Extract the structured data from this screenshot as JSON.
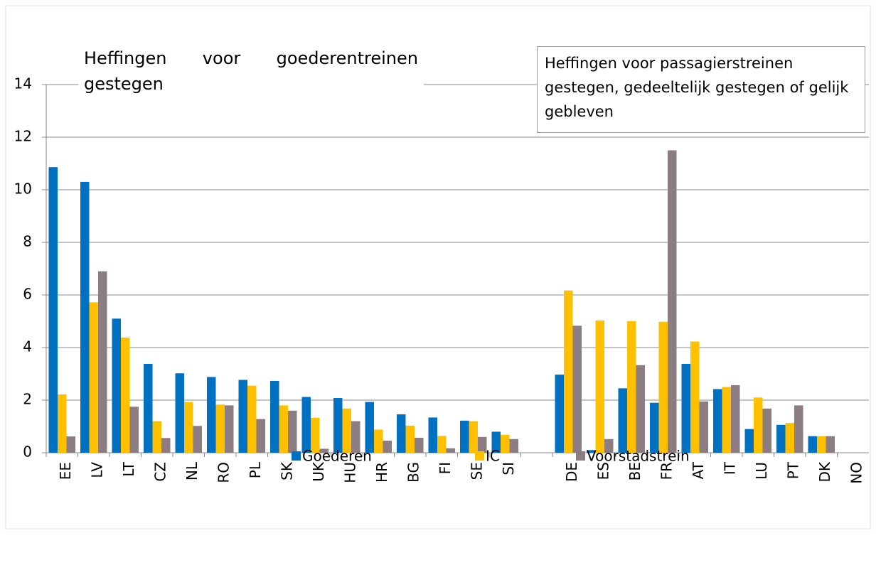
{
  "chart_data": {
    "type": "bar",
    "annotations": [
      {
        "text": "Heffingen voor goederentreinen gestegen"
      },
      {
        "text": "Heffingen voor passagierstreinen gestegen, gedeeltelijk gestegen of gelijk gebleven"
      }
    ],
    "categories": [
      "EE",
      "LV",
      "LT",
      "CZ",
      "NL",
      "RO",
      "PL",
      "SK",
      "UK",
      "HU",
      "HR",
      "BG",
      "FI",
      "SE",
      "SI",
      null,
      "DE",
      "ES",
      "BE",
      "FR",
      "AT",
      "IT",
      "LU",
      "PT",
      "DK",
      "NO"
    ],
    "series": [
      {
        "name": "Goederen",
        "color": "#0070c0",
        "values": [
          10.86,
          10.3,
          5.1,
          3.38,
          3.02,
          2.88,
          2.77,
          2.73,
          2.12,
          2.08,
          1.93,
          1.46,
          1.34,
          1.22,
          0.8,
          null,
          2.97,
          0.1,
          2.45,
          1.9,
          3.38,
          2.42,
          0.9,
          1.06,
          0.63,
          0
        ]
      },
      {
        "name": "IC",
        "color": "#ffc000",
        "values": [
          2.22,
          5.72,
          4.38,
          1.2,
          1.93,
          1.83,
          2.55,
          1.8,
          1.33,
          1.68,
          0.88,
          1.03,
          0.64,
          1.2,
          0.68,
          null,
          6.17,
          5.03,
          5.0,
          4.98,
          4.23,
          2.5,
          2.1,
          1.13,
          0.63,
          0
        ]
      },
      {
        "name": "Voorstadstrein",
        "color": "#8b7d82",
        "values": [
          0.62,
          6.9,
          1.75,
          0.56,
          1.02,
          1.8,
          1.28,
          1.6,
          0.15,
          1.2,
          0.46,
          0.57,
          0.17,
          0.6,
          0.52,
          null,
          4.83,
          0.52,
          3.33,
          11.5,
          1.95,
          2.57,
          1.68,
          1.8,
          0.63,
          0
        ]
      }
    ],
    "ylim": [
      0,
      14
    ],
    "yticks": [
      0,
      2,
      4,
      6,
      8,
      10,
      12,
      14
    ],
    "grid": true
  }
}
